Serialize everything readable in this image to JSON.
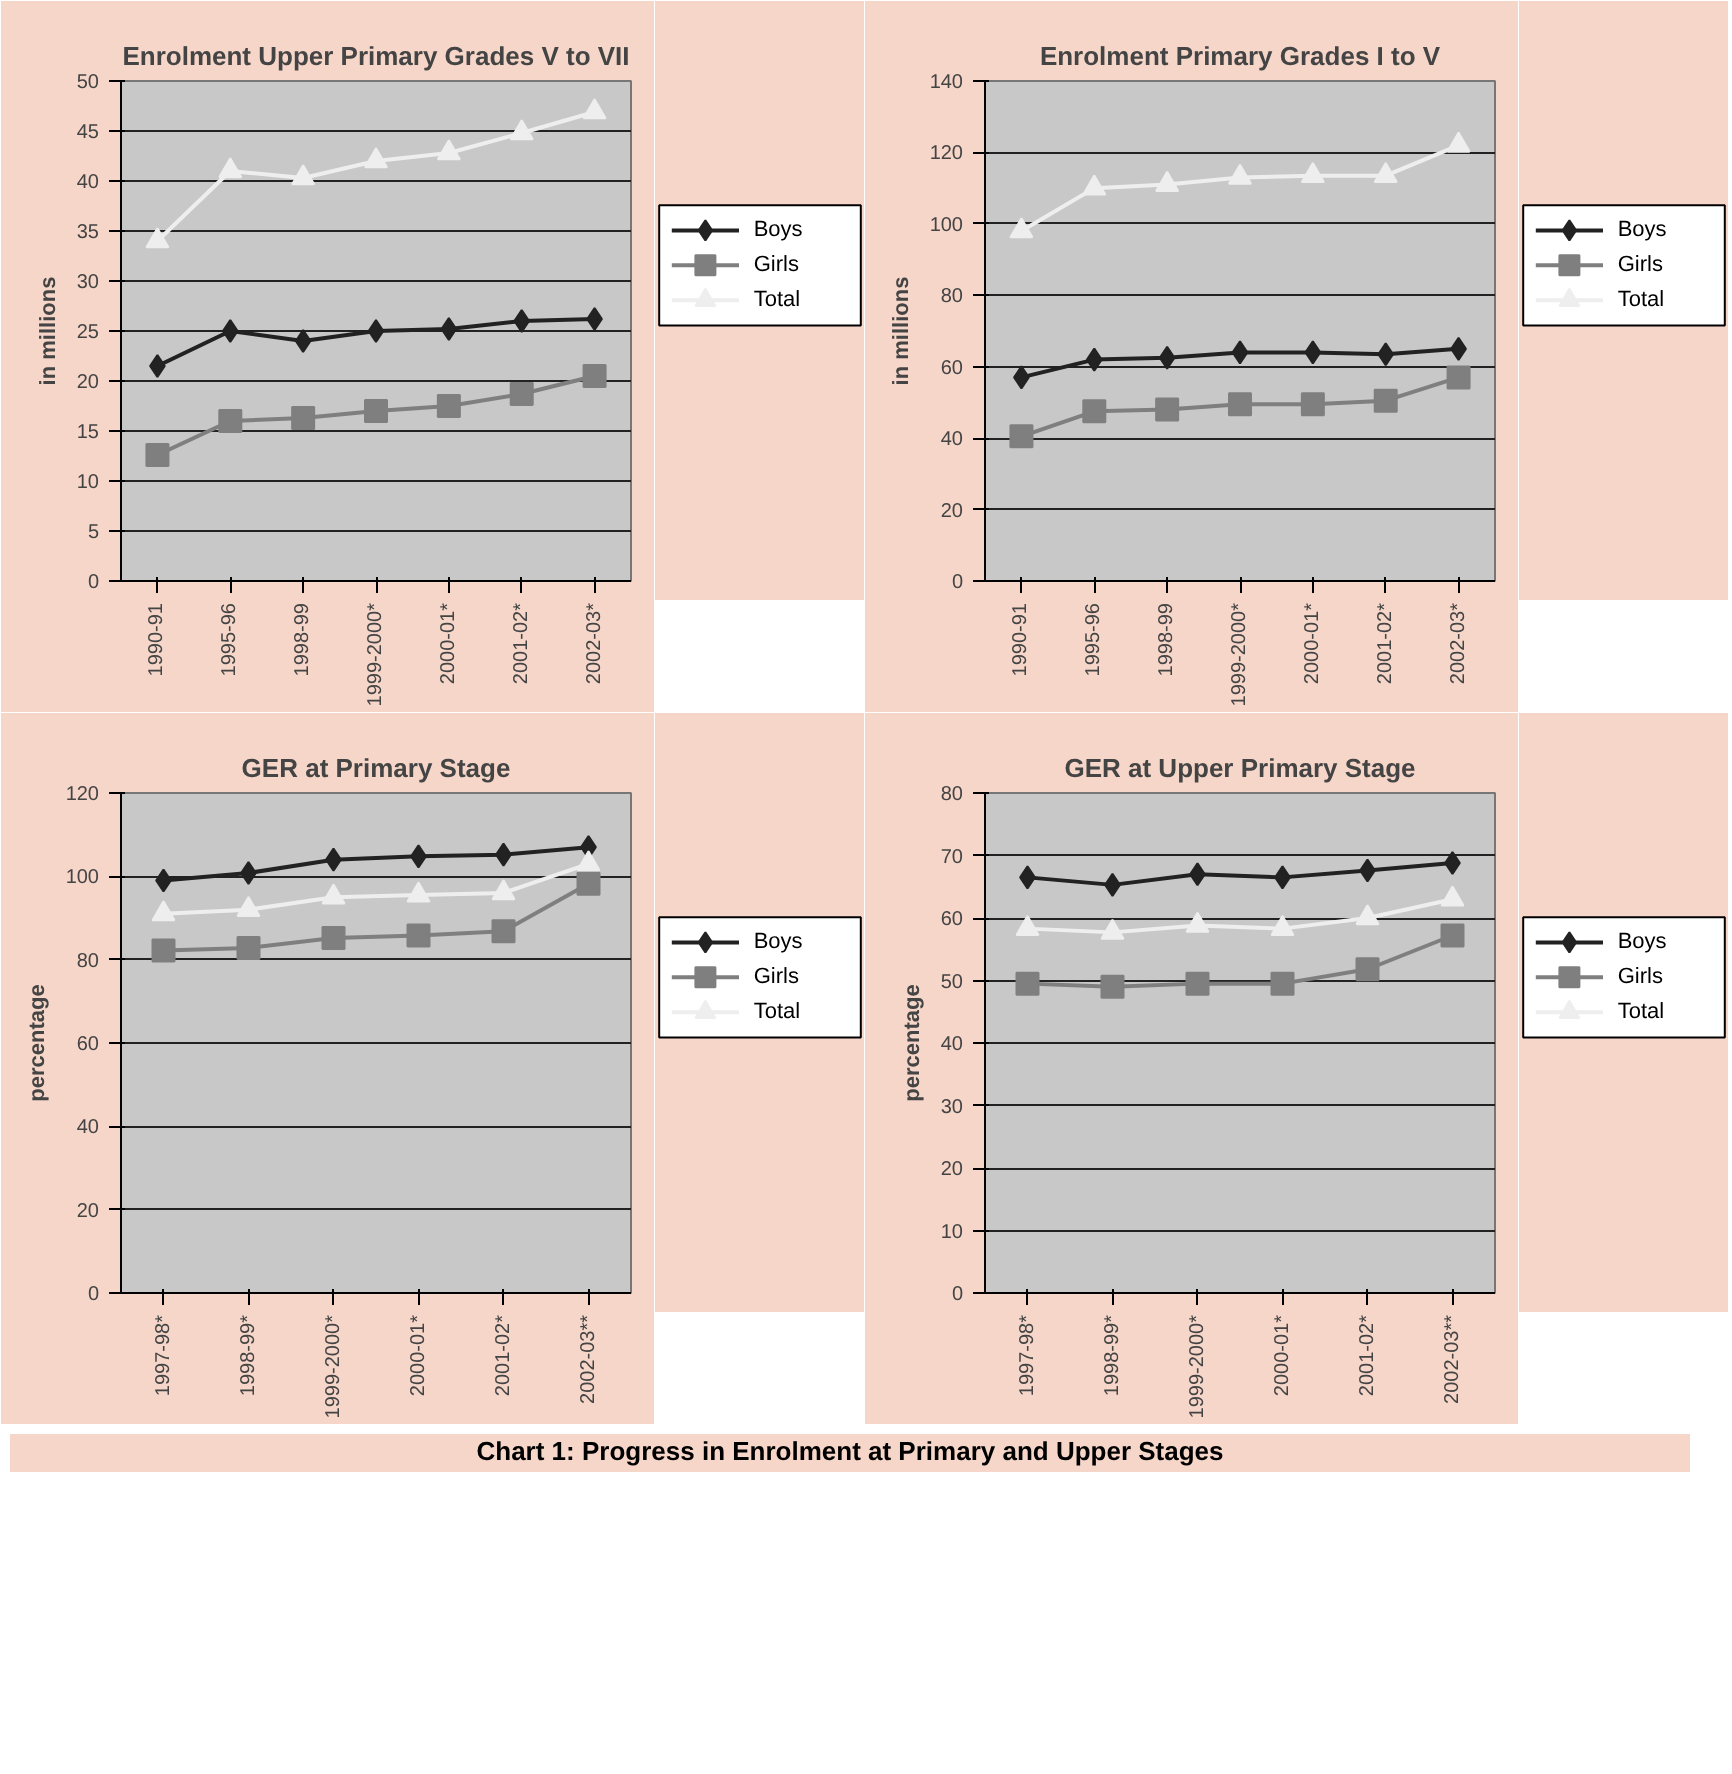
{
  "chart_data": [
    {
      "type": "line",
      "title": "Enrolment Upper Primary Grades V to VII",
      "ylabel": "in millions",
      "categories": [
        "1990-91",
        "1995-96",
        "1998-99",
        "1999-2000*",
        "2000-01*",
        "2001-02*",
        "2002-03*"
      ],
      "ylim": [
        0,
        50
      ],
      "yticks": [
        0,
        5,
        10,
        15,
        20,
        25,
        30,
        35,
        40,
        45,
        50
      ],
      "grid": "y",
      "legend": "right",
      "series": [
        {
          "name": "Boys",
          "color": "#222222",
          "marker": "diamond",
          "values": [
            21.5,
            25,
            24,
            25,
            25.2,
            26,
            26.2
          ]
        },
        {
          "name": "Girls",
          "color": "#7f7f7f",
          "marker": "square",
          "values": [
            12.6,
            16,
            16.3,
            17,
            17.5,
            18.7,
            20.5
          ]
        },
        {
          "name": "Total",
          "color": "#eeeeee",
          "marker": "triangle",
          "values": [
            34,
            41,
            40.3,
            42,
            42.8,
            44.8,
            46.9
          ]
        }
      ]
    },
    {
      "type": "line",
      "title": "Enrolment Primary Grades I to V",
      "ylabel": "in millions",
      "categories": [
        "1990-91",
        "1995-96",
        "1998-99",
        "1999-2000*",
        "2000-01*",
        "2001-02*",
        "2002-03*"
      ],
      "ylim": [
        0,
        140
      ],
      "yticks": [
        0,
        20,
        40,
        60,
        80,
        100,
        120,
        140
      ],
      "grid": "y",
      "legend": "right",
      "series": [
        {
          "name": "Boys",
          "color": "#222222",
          "marker": "diamond",
          "values": [
            57,
            62,
            62.5,
            64,
            64,
            63.5,
            65
          ]
        },
        {
          "name": "Girls",
          "color": "#7f7f7f",
          "marker": "square",
          "values": [
            40.5,
            47.5,
            48,
            49.5,
            49.5,
            50.5,
            57
          ]
        },
        {
          "name": "Total",
          "color": "#eeeeee",
          "marker": "triangle",
          "values": [
            98,
            110,
            111,
            113,
            113.5,
            113.5,
            122
          ]
        }
      ]
    },
    {
      "type": "line",
      "title": "GER at Primary Stage",
      "ylabel": "percentage",
      "categories": [
        "1997-98*",
        "1998-99*",
        "1999-2000*",
        "2000-01*",
        "2001-02*",
        "2002-03**"
      ],
      "ylim": [
        0,
        120
      ],
      "yticks": [
        0,
        20,
        40,
        60,
        80,
        100,
        120
      ],
      "grid": "y",
      "legend": "right",
      "series": [
        {
          "name": "Boys",
          "color": "#222222",
          "marker": "diamond",
          "values": [
            99,
            100.8,
            104,
            104.8,
            105.2,
            107
          ]
        },
        {
          "name": "Girls",
          "color": "#7f7f7f",
          "marker": "square",
          "values": [
            82.2,
            82.8,
            85.2,
            85.8,
            86.8,
            98.2
          ]
        },
        {
          "name": "Total",
          "color": "#eeeeee",
          "marker": "triangle",
          "values": [
            91,
            92,
            95,
            95.5,
            96,
            103
          ]
        }
      ]
    },
    {
      "type": "line",
      "title": "GER at Upper Primary Stage",
      "ylabel": "percentage",
      "categories": [
        "1997-98*",
        "1998-99*",
        "1999-2000*",
        "2000-01*",
        "2001-02*",
        "2002-03**"
      ],
      "ylim": [
        0,
        80
      ],
      "yticks": [
        0,
        10,
        20,
        30,
        40,
        50,
        60,
        70,
        80
      ],
      "grid": "y",
      "legend": "right",
      "annotations": [
        "Chart 1: Progress in Enrolment at Primary and Upper Stages"
      ],
      "series": [
        {
          "name": "Boys",
          "color": "#222222",
          "marker": "diamond",
          "values": [
            66.5,
            65.3,
            67,
            66.5,
            67.6,
            68.8
          ]
        },
        {
          "name": "Girls",
          "color": "#7f7f7f",
          "marker": "square",
          "values": [
            49.5,
            49,
            49.5,
            49.5,
            51.8,
            57.2
          ]
        },
        {
          "name": "Total",
          "color": "#eeeeee",
          "marker": "triangle",
          "values": [
            58.3,
            57.7,
            58.8,
            58.3,
            60,
            63
          ]
        }
      ]
    }
  ]
}
